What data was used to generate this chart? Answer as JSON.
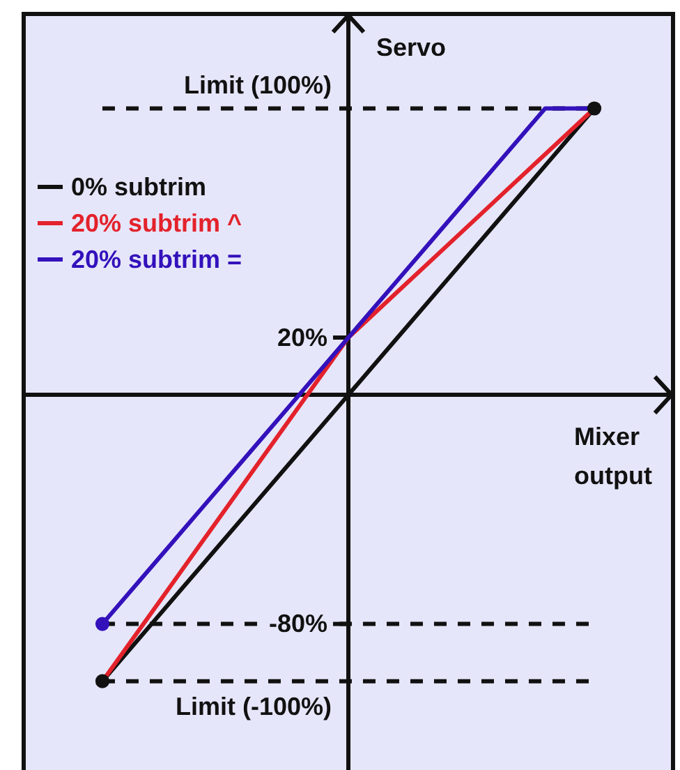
{
  "chart_data": {
    "type": "line",
    "xlabel": "Mixer output",
    "ylabel": "Servo",
    "legend": "top left",
    "categories": [
      null,
      null,
      null,
      null,
      null,
      null,
      null,
      null,
      null,
      null,
      null
    ],
    "ylim": [
      -131,
      133
    ],
    "yticks": [
      {
        "value": 20,
        "label": "20%"
      },
      {
        "value": -80,
        "label": "-80%"
      }
    ],
    "series": [
      {
        "name": "0% subtrim",
        "color": "#111111",
        "values": [
          -100,
          -80,
          -60,
          -40,
          -20,
          0,
          20,
          40,
          60,
          80,
          100
        ]
      },
      {
        "name": "20% subtrim ^",
        "color": "#e3222b",
        "values": [
          -100,
          -76,
          -52,
          -28,
          -4,
          20,
          36,
          52,
          68,
          84,
          100
        ]
      },
      {
        "name": "20% subtrim =",
        "color": "#3311bb",
        "values": [
          -80,
          -60,
          -40,
          -20,
          0,
          20,
          40,
          60,
          80,
          100,
          100
        ]
      },
      {
        "type": "scatter",
        "color": "#3311bb",
        "values": [
          -80,
          null,
          null,
          null,
          null,
          null,
          null,
          null,
          null,
          null,
          null
        ],
        "marker": "circle"
      },
      {
        "type": "scatter",
        "color": "#111111",
        "values": [
          -100,
          null,
          null,
          null,
          null,
          null,
          null,
          null,
          null,
          null,
          100
        ],
        "marker": "circle"
      }
    ],
    "ref_lines": [
      {
        "axis": "y",
        "value": 100,
        "label": "Limit (100%)",
        "color": "#111111",
        "line_style": "dashed"
      },
      {
        "axis": "y",
        "value": -80,
        "color": "#111111",
        "line_style": "dashed"
      },
      {
        "axis": "y",
        "value": -100,
        "label": "Limit (-100%)",
        "color": "#111111",
        "line_style": "dashed"
      }
    ]
  }
}
